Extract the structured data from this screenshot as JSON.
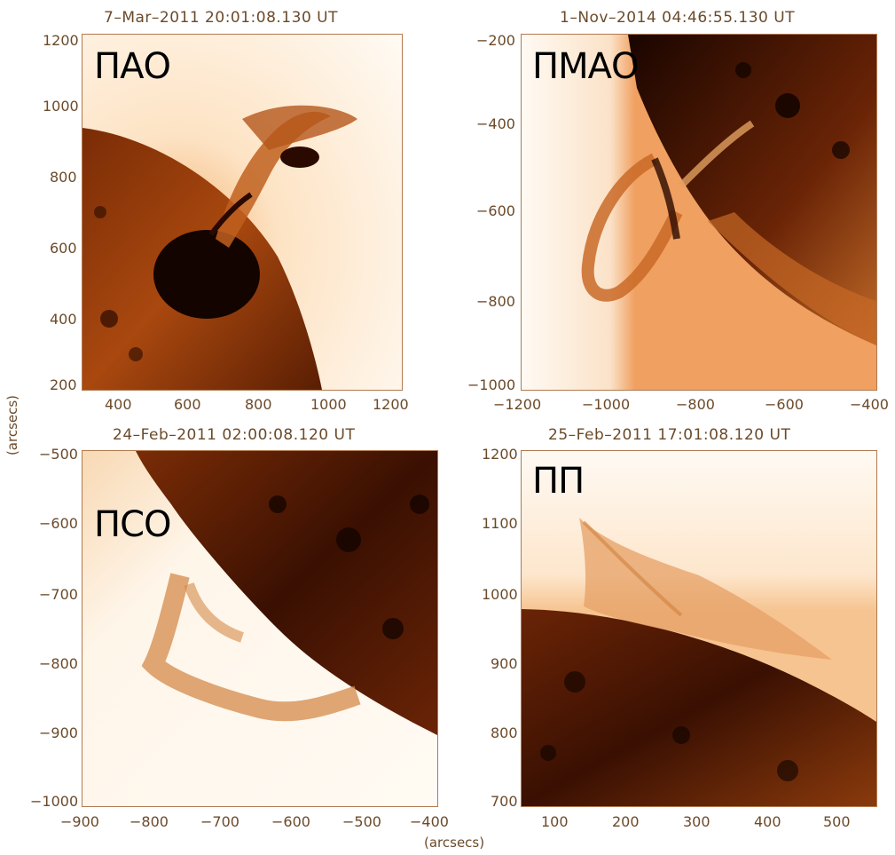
{
  "axis_label": "(arcsecs)",
  "colors": {
    "frame": "#b07a50",
    "sun_dark": "#1a0600",
    "sun_mid": "#8b3a0a",
    "sun_light": "#d87a2a",
    "corona": "#fff4e6"
  },
  "panels": [
    {
      "title": "7–Mar–2011 20:01:08.130 UT",
      "label": "ПАО",
      "xticks": [
        "400",
        "600",
        "800",
        "1000",
        "1200"
      ],
      "yticks": [
        "1200",
        "1000",
        "800",
        "600",
        "400",
        "200"
      ]
    },
    {
      "title": "1–Nov–2014 04:46:55.130 UT",
      "label": "ПМАО",
      "xticks": [
        "−1200",
        "−1000",
        "−800",
        "−600",
        "−400"
      ],
      "yticks": [
        "−200",
        "−400",
        "−600",
        "−800",
        "−1000"
      ]
    },
    {
      "title": "24–Feb–2011 02:00:08.120 UT",
      "label": "ПСО",
      "xticks": [
        "−900",
        "−800",
        "−700",
        "−600",
        "−500",
        "−400"
      ],
      "yticks": [
        "−500",
        "−600",
        "−700",
        "−800",
        "−900",
        "−1000"
      ]
    },
    {
      "title": "25–Feb–2011 17:01:08.120 UT",
      "label": "ПП",
      "xticks": [
        "100",
        "200",
        "300",
        "400",
        "500"
      ],
      "yticks": [
        "1200",
        "1100",
        "1000",
        "900",
        "800",
        "700"
      ]
    }
  ]
}
